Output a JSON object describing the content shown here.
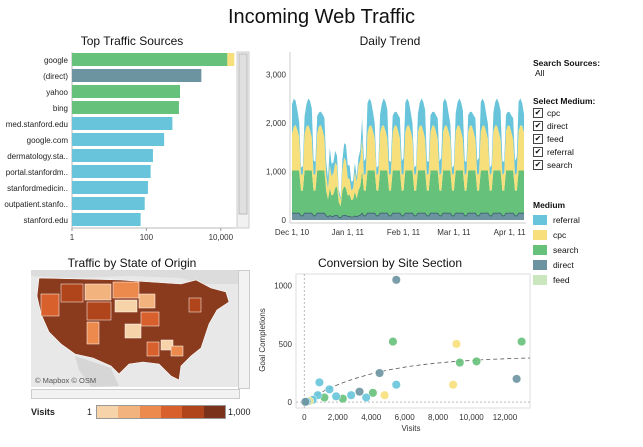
{
  "page_title": "Incoming Web Traffic",
  "top_sources": {
    "title": "Top Traffic Sources",
    "ticks": [
      "1",
      "100",
      "10,000"
    ],
    "rows": [
      {
        "label": "google",
        "color": "#66c17a",
        "value": 15000,
        "extra": 7000
      },
      {
        "label": "(direct)",
        "color": "#6b93a0",
        "value": 3000
      },
      {
        "label": "yahoo",
        "color": "#66c17a",
        "value": 800
      },
      {
        "label": "bing",
        "color": "#66c17a",
        "value": 750
      },
      {
        "label": "med.stanford.edu",
        "color": "#67c4da",
        "value": 500
      },
      {
        "label": "google.com",
        "color": "#67c4da",
        "value": 300
      },
      {
        "label": "dermatology.sta..",
        "color": "#67c4da",
        "value": 150
      },
      {
        "label": "portal.stanfordm..",
        "color": "#67c4da",
        "value": 130
      },
      {
        "label": "stanfordmedicin..",
        "color": "#67c4da",
        "value": 110
      },
      {
        "label": "outpatient.stanfo..",
        "color": "#67c4da",
        "value": 90
      },
      {
        "label": "stanford.edu",
        "color": "#67c4da",
        "value": 70
      }
    ]
  },
  "daily_trend": {
    "title": "Daily Trend",
    "yticks": [
      "3,000",
      "2,000",
      "1,000",
      "0"
    ],
    "xticks": [
      "Dec 1, 10",
      "Jan 1, 11",
      "Feb 1, 11",
      "Mar 1, 11",
      "Apr 1, 11"
    ]
  },
  "map": {
    "title": "Traffic by State of Origin",
    "credit": "© Mapbox © OSM"
  },
  "visits_legend": {
    "label": "Visits",
    "min": "1",
    "max": "1,000",
    "colors": [
      "#f6d3a8",
      "#f3b37e",
      "#ec8a4e",
      "#d8602c",
      "#b0441b",
      "#7a321a"
    ]
  },
  "conversion": {
    "title": "Conversion by Site Section",
    "ylabel": "Goal Completions",
    "xlabel": "Visits",
    "yticks": [
      "1000",
      "500",
      "0"
    ],
    "xticks": [
      "0",
      "2,000",
      "4,000",
      "6,000",
      "8,000",
      "10,000",
      "12,000"
    ]
  },
  "search_sources": {
    "heading": "Search Sources:",
    "value": "All"
  },
  "select_medium": {
    "heading": "Select Medium:",
    "options": [
      "cpc",
      "direct",
      "feed",
      "referral",
      "search"
    ]
  },
  "medium_legend": {
    "heading": "Medium",
    "items": [
      {
        "label": "referral",
        "color": "#67c4da"
      },
      {
        "label": "cpc",
        "color": "#f7e07b"
      },
      {
        "label": "search",
        "color": "#66c17a"
      },
      {
        "label": "direct",
        "color": "#6b93a0"
      },
      {
        "label": "feed",
        "color": "#c9e6bd"
      }
    ]
  },
  "chart_data": [
    {
      "type": "bar",
      "title": "Top Traffic Sources",
      "scale": "log",
      "categories": [
        "google",
        "(direct)",
        "yahoo",
        "bing",
        "med.stanford.edu",
        "google.com",
        "dermatology.sta..",
        "portal.stanfordm..",
        "stanfordmedicin..",
        "outpatient.stanfo..",
        "stanford.edu"
      ],
      "values": [
        22000,
        3000,
        800,
        750,
        500,
        300,
        150,
        130,
        110,
        90,
        70
      ],
      "xlim": [
        1,
        100000
      ]
    },
    {
      "type": "area",
      "title": "Daily Trend",
      "series": [
        {
          "name": "direct",
          "approx_level": 150
        },
        {
          "name": "search",
          "approx_level": 900
        },
        {
          "name": "cpc",
          "approx_level": 1000
        },
        {
          "name": "referral",
          "approx_level": 600
        }
      ],
      "ylim": [
        0,
        3000
      ]
    },
    {
      "type": "scatter",
      "title": "Conversion by Site Section",
      "xlabel": "Visits",
      "ylabel": "Goal Completions",
      "xlim": [
        -500,
        13500
      ],
      "ylim": [
        -50,
        1100
      ],
      "points": [
        {
          "x": 5500,
          "y": 1050,
          "m": "direct"
        },
        {
          "x": 5300,
          "y": 520,
          "m": "search"
        },
        {
          "x": 13000,
          "y": 520,
          "m": "search"
        },
        {
          "x": 9100,
          "y": 500,
          "m": "cpc"
        },
        {
          "x": 9300,
          "y": 340,
          "m": "search"
        },
        {
          "x": 10300,
          "y": 350,
          "m": "search"
        },
        {
          "x": 8900,
          "y": 150,
          "m": "cpc"
        },
        {
          "x": 12700,
          "y": 200,
          "m": "direct"
        },
        {
          "x": 4800,
          "y": 60,
          "m": "cpc"
        },
        {
          "x": 5500,
          "y": 150,
          "m": "referral"
        },
        {
          "x": 4500,
          "y": 250,
          "m": "direct"
        },
        {
          "x": 4100,
          "y": 80,
          "m": "search"
        },
        {
          "x": 3300,
          "y": 90,
          "m": "direct"
        },
        {
          "x": 3700,
          "y": 40,
          "m": "referral"
        },
        {
          "x": 2800,
          "y": 60,
          "m": "referral"
        },
        {
          "x": 2300,
          "y": 30,
          "m": "search"
        },
        {
          "x": 1900,
          "y": 50,
          "m": "referral"
        },
        {
          "x": 1500,
          "y": 110,
          "m": "referral"
        },
        {
          "x": 1200,
          "y": 40,
          "m": "search"
        },
        {
          "x": 900,
          "y": 170,
          "m": "referral"
        },
        {
          "x": 800,
          "y": 60,
          "m": "referral"
        },
        {
          "x": 500,
          "y": 20,
          "m": "referral"
        },
        {
          "x": 300,
          "y": 10,
          "m": "cpc"
        },
        {
          "x": 150,
          "y": 5,
          "m": "referral"
        },
        {
          "x": 60,
          "y": 3,
          "m": "direct"
        }
      ],
      "trend": [
        [
          0,
          0
        ],
        [
          4000,
          220
        ],
        [
          8000,
          340
        ],
        [
          12000,
          390
        ],
        [
          13500,
          395
        ]
      ]
    }
  ]
}
